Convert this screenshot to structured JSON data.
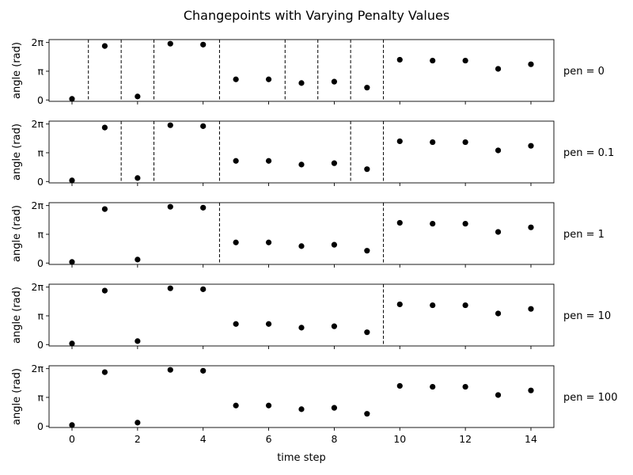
{
  "figure": {
    "title": "Changepoints with Varying Penalty Values"
  },
  "chart_data": {
    "type": "scatter",
    "title": "Changepoints with Varying Penalty Values",
    "xlabel": "time step",
    "ylabel": "angle (rad)",
    "xlim": [
      -0.7,
      14.7
    ],
    "ylim": [
      -0.15,
      6.6
    ],
    "x_ticks": [
      0,
      2,
      4,
      6,
      8,
      10,
      12,
      14
    ],
    "y_ticks": [
      {
        "value": 0,
        "label": "0"
      },
      {
        "value": 3.14159,
        "label": "π"
      },
      {
        "value": 6.28318,
        "label": "2π"
      }
    ],
    "grid": false,
    "x": [
      0,
      1,
      2,
      3,
      4,
      5,
      6,
      7,
      8,
      9,
      10,
      11,
      12,
      13,
      14
    ],
    "y": [
      0.12,
      5.9,
      0.38,
      6.15,
      6.05,
      2.25,
      2.25,
      1.85,
      2.0,
      1.35,
      4.4,
      4.3,
      4.3,
      3.4,
      3.9
    ],
    "panels": [
      {
        "label": "pen = 0",
        "changepoints": [
          0.5,
          1.5,
          2.5,
          4.5,
          6.5,
          7.5,
          8.5,
          9.5
        ]
      },
      {
        "label": "pen = 0.1",
        "changepoints": [
          1.5,
          2.5,
          4.5,
          8.5,
          9.5
        ]
      },
      {
        "label": "pen = 1",
        "changepoints": [
          4.5,
          9.5
        ]
      },
      {
        "label": "pen = 10",
        "changepoints": [
          9.5
        ]
      },
      {
        "label": "pen = 100",
        "changepoints": []
      }
    ]
  }
}
